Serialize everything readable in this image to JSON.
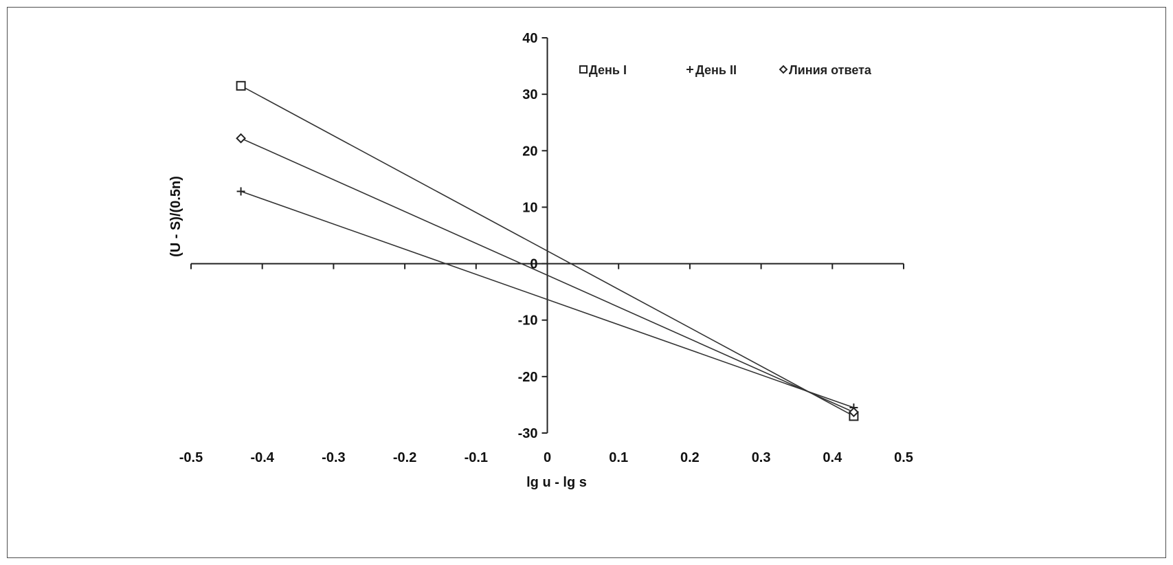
{
  "chart_data": {
    "type": "line",
    "xlabel": "lg u - lg s",
    "ylabel": "(U - S)/(0.5n)",
    "xlim": [
      -0.5,
      0.5
    ],
    "ylim": [
      -30,
      40
    ],
    "x_ticks": [
      -0.5,
      -0.4,
      -0.3,
      -0.2,
      -0.1,
      0,
      0.1,
      0.2,
      0.3,
      0.4,
      0.5
    ],
    "x_tick_labels": [
      "-0.5",
      "-0.4",
      "-0.3",
      "-0.2",
      "-0.1",
      "0",
      "0.1",
      "0.2",
      "0.3",
      "0.4",
      "0.5"
    ],
    "y_ticks": [
      -30,
      -20,
      -10,
      0,
      10,
      20,
      30,
      40
    ],
    "y_tick_labels": [
      "-30",
      "-20",
      "-10",
      "0",
      "10",
      "20",
      "30",
      "40"
    ],
    "grid": false,
    "legend_position": "top-right",
    "series": [
      {
        "name": "День I",
        "marker": "square",
        "color": "#333333",
        "x": [
          -0.43,
          0.43
        ],
        "y": [
          31.5,
          -27
        ]
      },
      {
        "name": "День II",
        "marker": "plus",
        "color": "#333333",
        "x": [
          -0.43,
          0.43
        ],
        "y": [
          12.8,
          -25.5
        ]
      },
      {
        "name": "Линия ответа",
        "marker": "diamond",
        "color": "#333333",
        "x": [
          -0.43,
          0.43
        ],
        "y": [
          22.2,
          -26.3
        ]
      }
    ]
  }
}
